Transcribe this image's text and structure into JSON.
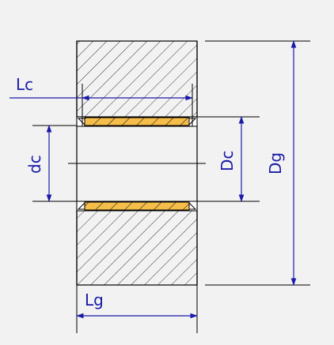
{
  "labels": {
    "lc": "Lc",
    "dc": "dc",
    "dc_outer": "Dc",
    "dg": "Dg",
    "lg": "Lg"
  },
  "colors": {
    "background": "#f2f2f2",
    "outline": "#000000",
    "dimension": "#1a1aa8",
    "bushing_fill": "#f5bd4a",
    "hatch": "#3a3a3a"
  }
}
